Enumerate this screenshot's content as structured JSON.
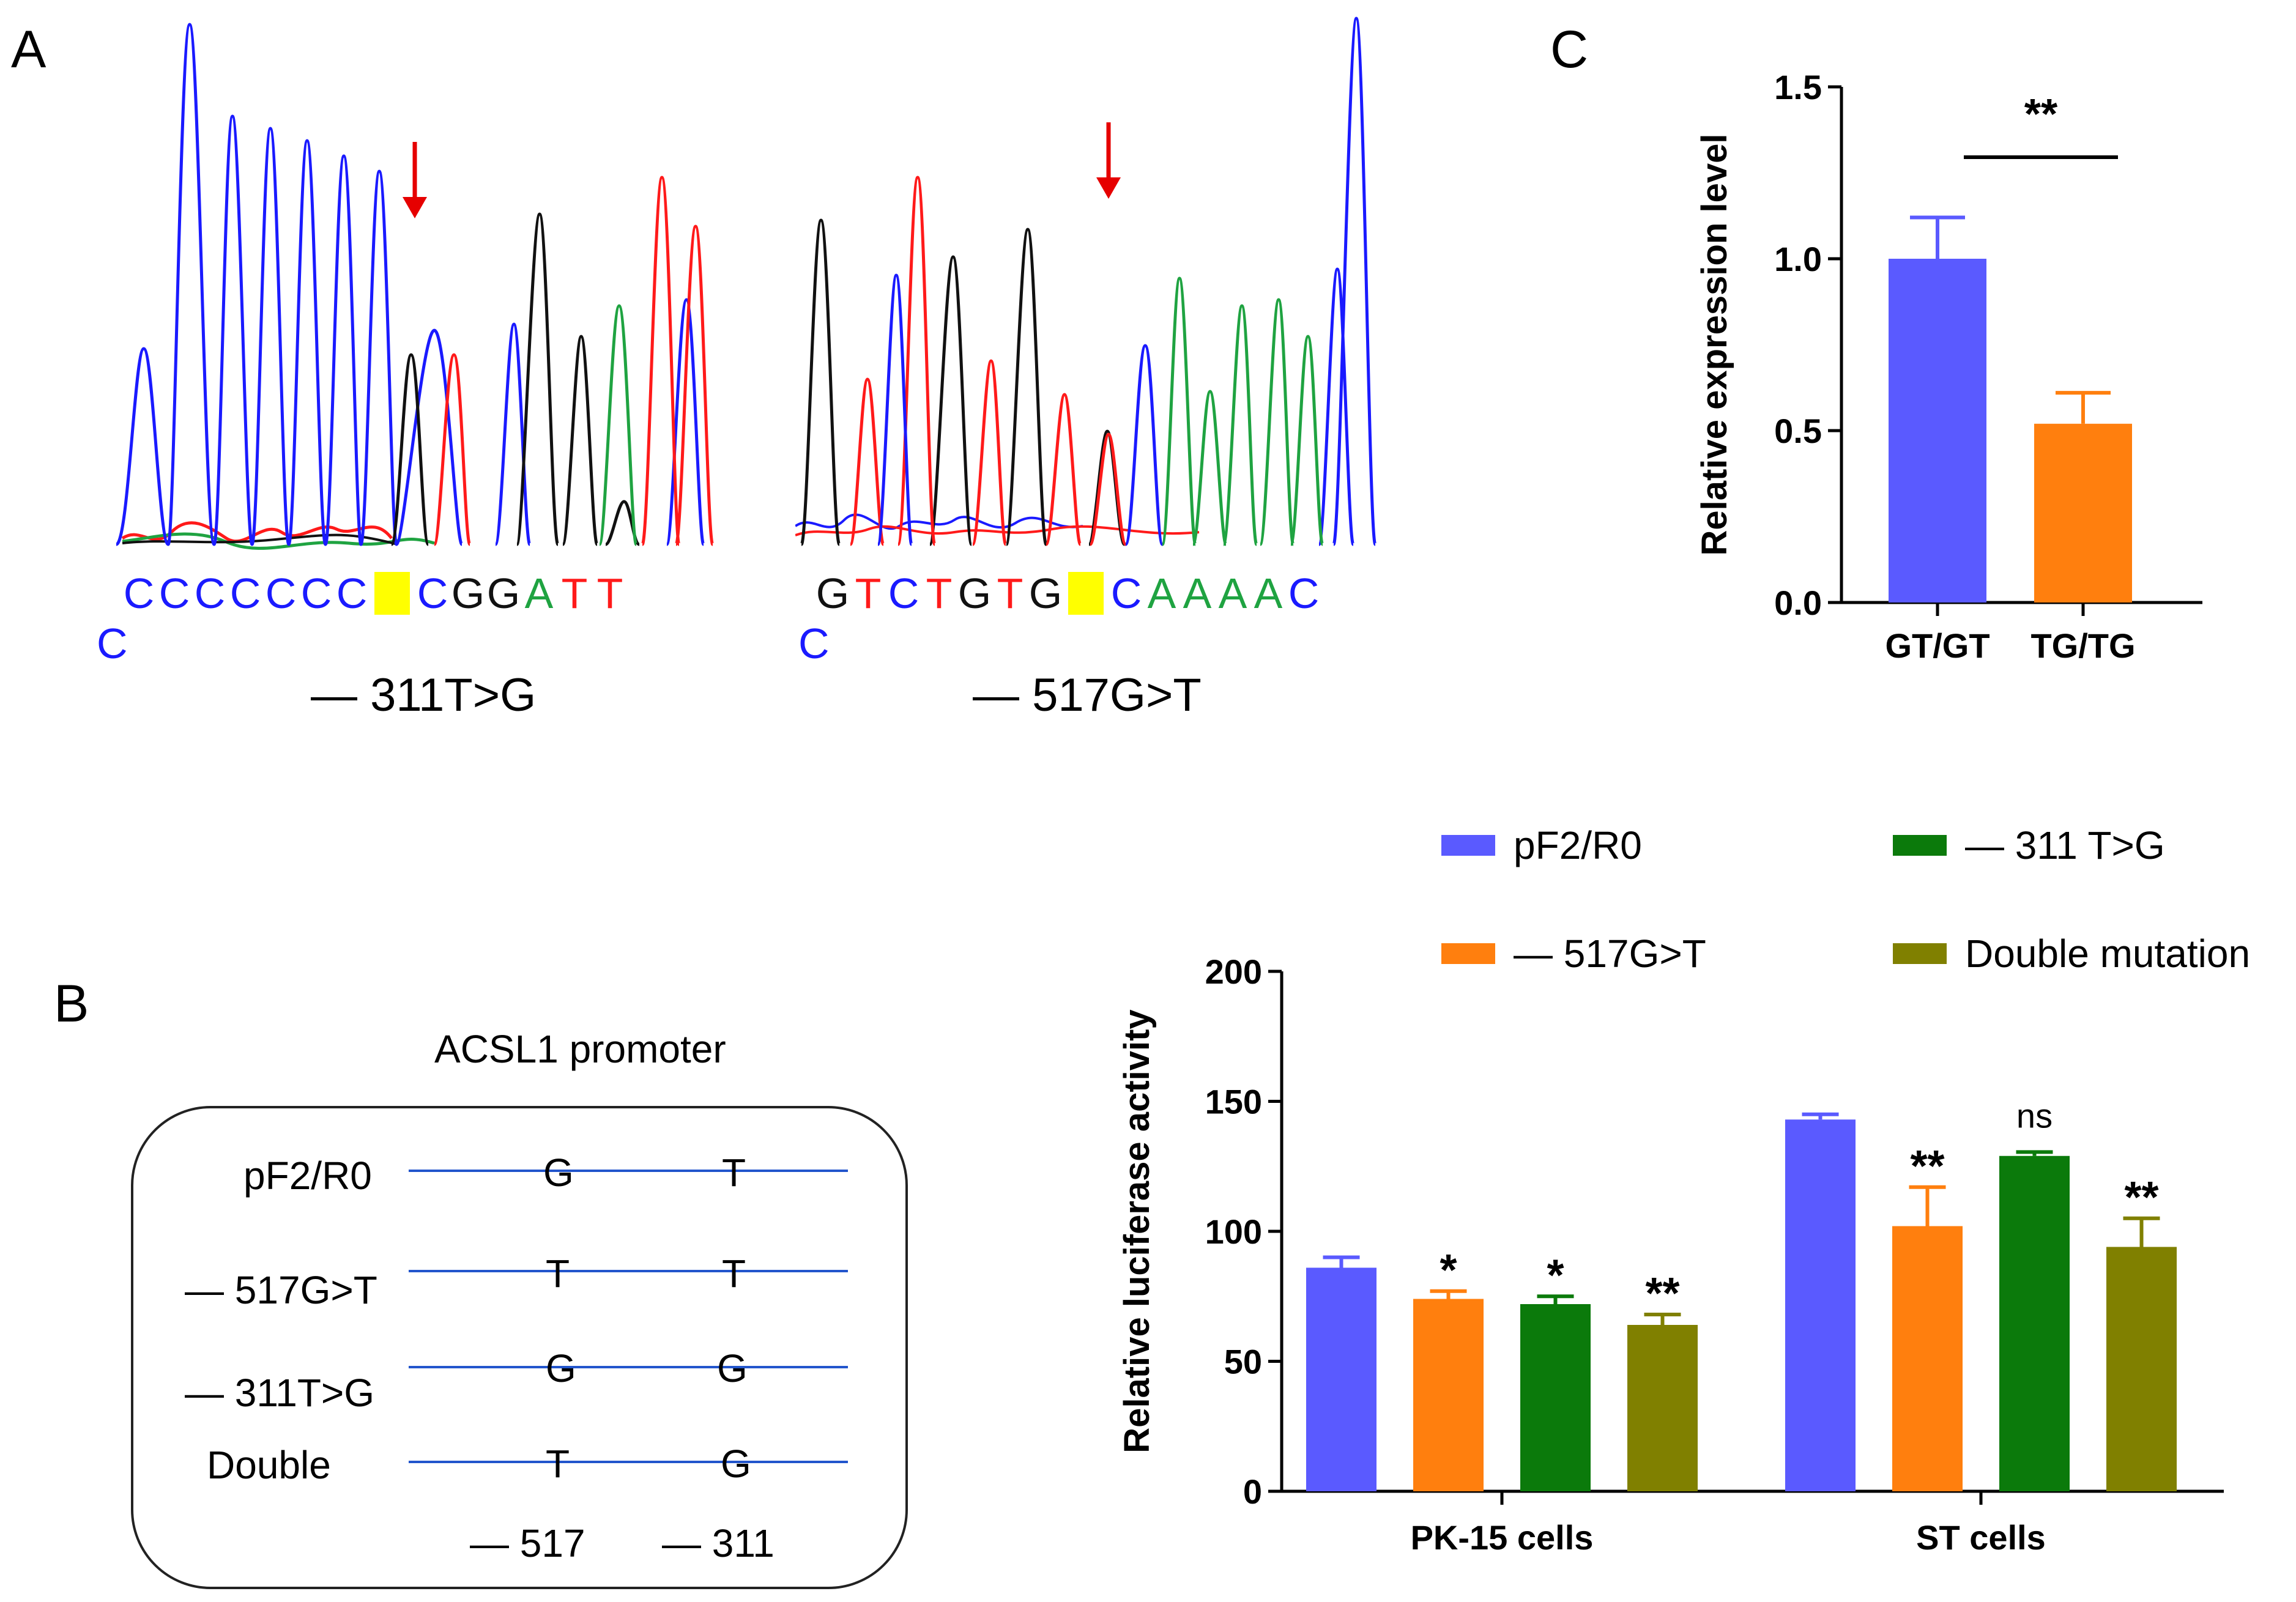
{
  "panels": {
    "a": "A",
    "b": "B",
    "c": "C"
  },
  "colors": {
    "A": "#1fa341",
    "C": "#1a1aff",
    "G": "#111111",
    "T": "#ff1a1a",
    "highlight": "#ffff00",
    "arrow": "#e60000",
    "blue": "#5a5aff",
    "orange": "#ff7f0e",
    "green": "#0b7a0b",
    "olive": "#808000",
    "promoter_line": "#2255cc"
  },
  "chromatograms": [
    {
      "bases": [
        "C",
        "C",
        "C",
        "C",
        "C",
        "C",
        "C",
        "",
        "C",
        "G",
        "G",
        "A",
        "T",
        "T"
      ],
      "prefix": "C",
      "label": "— 311T>G"
    },
    {
      "bases": [
        "G",
        "T",
        "C",
        "T",
        "G",
        "T",
        "G",
        "",
        "C",
        "A",
        "A",
        "A",
        "A",
        "C"
      ],
      "prefix": "C",
      "label": "— 517G>T"
    }
  ],
  "promoter": {
    "title": "ACSL1 promoter",
    "rows": [
      {
        "name": "pF2/R0",
        "b517": "G",
        "b311": "T"
      },
      {
        "name": "— 517G>T",
        "b517": "T",
        "b311": "T"
      },
      {
        "name": "— 311T>G",
        "b517": "G",
        "b311": "G"
      },
      {
        "name": "Double",
        "b517": "T",
        "b311": "G"
      }
    ],
    "pos_517": "— 517",
    "pos_311": "— 311"
  },
  "chart_data": [
    {
      "type": "bar",
      "title": "",
      "categories": [
        "GT/GT",
        "TG/TG"
      ],
      "values": [
        1.0,
        0.52
      ],
      "errors": [
        0.12,
        0.09
      ],
      "colors": [
        "#5a5aff",
        "#ff7f0e"
      ],
      "xlabel": "",
      "ylabel": "Relative expression level",
      "ylim": [
        0,
        1.5
      ],
      "yticks": [
        "0.0",
        "0.5",
        "1.0",
        "1.5"
      ],
      "ytick_values": [
        0,
        0.5,
        1.0,
        1.5
      ],
      "significance": "**"
    },
    {
      "type": "bar",
      "title": "",
      "categories": [
        "PK-15 cells",
        "ST cells"
      ],
      "series": [
        {
          "name": "pF2/R0",
          "values": [
            86,
            143
          ],
          "errors": [
            4,
            2
          ],
          "sig": [
            "",
            ""
          ]
        },
        {
          "name": "— 517G>T",
          "values": [
            74,
            102
          ],
          "errors": [
            3,
            15
          ],
          "sig": [
            "*",
            "**"
          ]
        },
        {
          "name": "— 311 T>G",
          "values": [
            72,
            129
          ],
          "errors": [
            3,
            1.5
          ],
          "sig": [
            "*",
            "ns"
          ]
        },
        {
          "name": "Double mutation",
          "values": [
            64,
            94
          ],
          "errors": [
            4,
            11
          ],
          "sig": [
            "**",
            "**"
          ]
        }
      ],
      "colors": [
        "#5a5aff",
        "#ff7f0e",
        "#0b7a0b",
        "#808000"
      ],
      "xlabel": "",
      "ylabel": "Relative luciferase activity",
      "ylim": [
        0,
        200
      ],
      "yticks": [
        "0",
        "50",
        "100",
        "150",
        "200"
      ],
      "ytick_values": [
        0,
        50,
        100,
        150,
        200
      ],
      "legend": "top"
    }
  ]
}
